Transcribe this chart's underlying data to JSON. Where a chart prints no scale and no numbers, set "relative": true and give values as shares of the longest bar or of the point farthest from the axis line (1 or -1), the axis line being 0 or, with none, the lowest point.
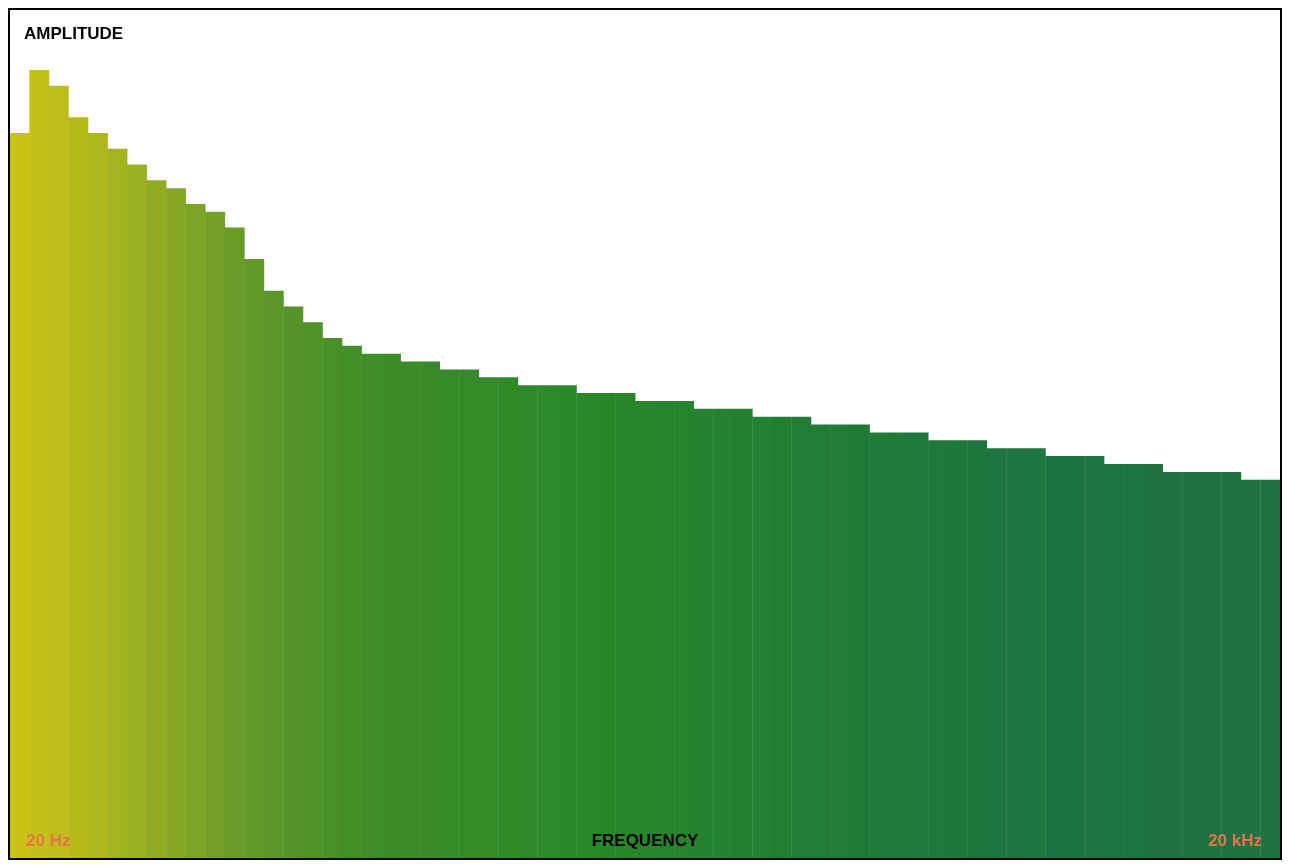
{
  "chart_data": {
    "type": "bar",
    "relative": true,
    "ylabel": "AMPLITUDE",
    "xlabel": "FREQUENCY",
    "annotations": [
      "20 Hz",
      "20 kHz"
    ],
    "categories": [
      null,
      null,
      null,
      null,
      null,
      null,
      null,
      null,
      null,
      null,
      null,
      null,
      null,
      null,
      null,
      null,
      null,
      null,
      null,
      null,
      null,
      null,
      null,
      null,
      null,
      null,
      null,
      null,
      null,
      null,
      null,
      null,
      null,
      null,
      null,
      null,
      null,
      null,
      null,
      null,
      null,
      null,
      null,
      null,
      null,
      null,
      null,
      null,
      null,
      null,
      null,
      null,
      null,
      null,
      null,
      null,
      null,
      null,
      null,
      null,
      null,
      null,
      null,
      null,
      null
    ],
    "values": [
      0.92,
      1,
      0.98,
      0.94,
      0.92,
      0.9,
      0.88,
      0.86,
      0.85,
      0.83,
      0.82,
      0.8,
      0.76,
      0.72,
      0.7,
      0.68,
      0.66,
      0.65,
      0.64,
      0.64,
      0.63,
      0.63,
      0.62,
      0.62,
      0.61,
      0.61,
      0.6,
      0.6,
      0.6,
      0.59,
      0.59,
      0.59,
      0.58,
      0.58,
      0.58,
      0.57,
      0.57,
      0.57,
      0.56,
      0.56,
      0.56,
      0.55,
      0.55,
      0.55,
      0.54,
      0.54,
      0.54,
      0.53,
      0.53,
      0.53,
      0.52,
      0.52,
      0.52,
      0.51,
      0.51,
      0.51,
      0.5,
      0.5,
      0.5,
      0.49,
      0.49,
      0.49,
      0.49,
      0.48,
      0.48
    ],
    "colors": [
      "#c8c214",
      "#c4c016",
      "#bebe18",
      "#b6bb1a",
      "#aeb81c",
      "#a4b41e",
      "#9ab020",
      "#90ac22",
      "#86a824",
      "#7ca426",
      "#72a028",
      "#6a9c28",
      "#629a28",
      "#5a9628",
      "#549428",
      "#4e9228",
      "#489028",
      "#448e28",
      "#408e28",
      "#3c8c28",
      "#3a8c28",
      "#388a28",
      "#368a28",
      "#348a28",
      "#328a28",
      "#308a28",
      "#2e8a28",
      "#2c8a28",
      "#2a8a28",
      "#2a8828",
      "#288828",
      "#28862a",
      "#28862a",
      "#26842c",
      "#26842c",
      "#26822e",
      "#248230",
      "#248030",
      "#248032",
      "#227e32",
      "#227e34",
      "#227c34",
      "#227c36",
      "#207a36",
      "#207a38",
      "#207a38",
      "#20783a",
      "#20783a",
      "#1e783c",
      "#1e763c",
      "#1e763e",
      "#1e763e",
      "#1e7640",
      "#1e7440",
      "#1e7440",
      "#1e7442",
      "#1e7442",
      "#1e7442",
      "#1e7242",
      "#1e7244",
      "#1e7244",
      "#1e7244",
      "#1e7244",
      "#1e7244",
      "#1e7244"
    ],
    "grid": false,
    "legend": false
  }
}
